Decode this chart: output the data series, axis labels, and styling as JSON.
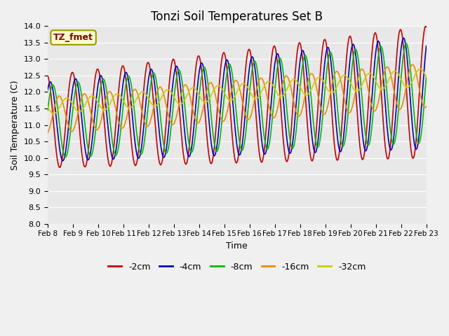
{
  "title": "Tonzi Soil Temperatures Set B",
  "xlabel": "Time",
  "ylabel": "Soil Temperature (C)",
  "ylim": [
    8.0,
    14.0
  ],
  "yticks": [
    8.0,
    8.5,
    9.0,
    9.5,
    10.0,
    10.5,
    11.0,
    11.5,
    12.0,
    12.5,
    13.0,
    13.5,
    14.0
  ],
  "xtick_labels": [
    "Feb 8",
    "Feb 9",
    "Feb 10",
    "Feb 11",
    "Feb 12",
    "Feb 13",
    "Feb 14",
    "Feb 15",
    "Feb 16",
    "Feb 17",
    "Feb 18",
    "Feb 19",
    "Feb 20",
    "Feb 21",
    "Feb 22",
    "Feb 23"
  ],
  "series_colors": {
    "-2cm": "#cc0000",
    "-4cm": "#0000cc",
    "-8cm": "#00bb00",
    "-16cm": "#ee8800",
    "-32cm": "#cccc00"
  },
  "legend_label": "TZ_fmet",
  "plot_bg_color": "#e8e8e8",
  "fig_bg_color": "#f0f0f0",
  "annotation_box_color": "#ffffcc",
  "annotation_text_color": "#880000",
  "linewidth": 1.2,
  "n_pts": 1500
}
